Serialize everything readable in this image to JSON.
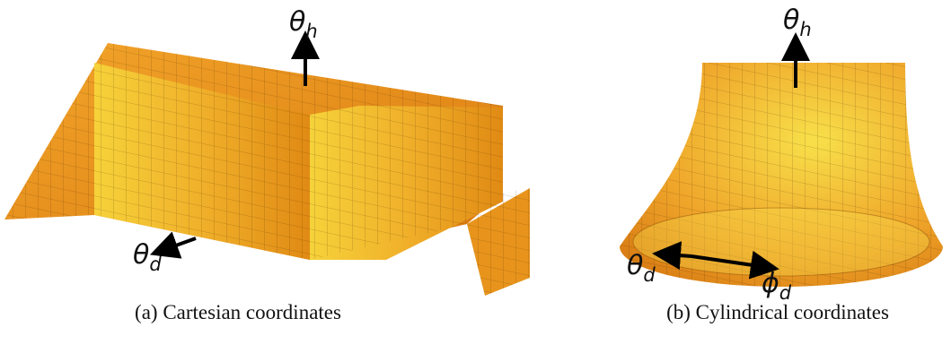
{
  "figures": [
    {
      "labels": [
        {
          "symbol": "θ",
          "subscript": "h"
        },
        {
          "symbol": "θ",
          "subscript": "d"
        }
      ],
      "caption": "(a) Cartesian coordinates"
    },
    {
      "labels": [
        {
          "symbol": "θ",
          "subscript": "h"
        },
        {
          "symbol": "θ",
          "subscript": "d"
        },
        {
          "symbol": "ϕ",
          "subscript": "d"
        }
      ],
      "caption": "(b) Cylindrical coordinates"
    }
  ]
}
